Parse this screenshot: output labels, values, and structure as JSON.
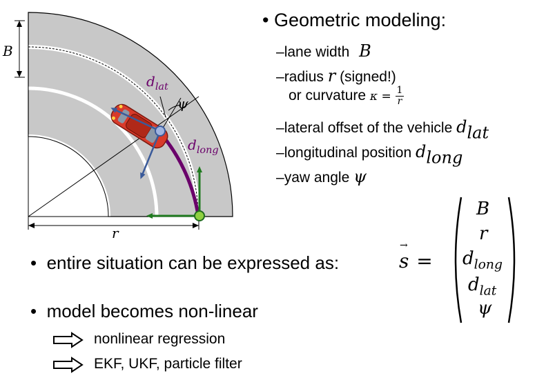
{
  "diagram": {
    "label_B": "B",
    "label_r": "r",
    "label_dlat": "d",
    "label_dlat_sub": "lat",
    "label_dlong": "d",
    "label_dlong_sub": "long",
    "label_psi": "ψ",
    "colors": {
      "road": "#c8c8c8",
      "lane_marking": "#ffffff",
      "inner_area": "#ffffff",
      "d_long_arc": "#6a006a",
      "vehicle_axis": "#3a5a9a",
      "ref_axis": "#1f7a1f",
      "vehicle_body": "#d83a2a",
      "ref_point": "#8fd040",
      "vehicle_point": "#a0b4e0"
    }
  },
  "bullets": {
    "title": "Geometric modeling:",
    "items": [
      {
        "text": "lane width",
        "math": "B"
      },
      {
        "text": "radius",
        "math": "r",
        "suffix": "(signed!)"
      },
      {
        "text": "or curvature",
        "math": "κ =",
        "frac_num": "1",
        "frac_den": "r"
      },
      {
        "text": "lateral offset of the vehicle",
        "math": "d",
        "sub": "lat"
      },
      {
        "text": "longitudinal position",
        "math": "d",
        "sub": "long"
      },
      {
        "text": "yaw angle",
        "math": "ψ"
      }
    ]
  },
  "main": {
    "situation_text": "entire situation can be expressed as:",
    "state_symbol": "s",
    "equals": "=",
    "state_vector": [
      {
        "sym": "B",
        "sub": ""
      },
      {
        "sym": "r",
        "sub": ""
      },
      {
        "sym": "d",
        "sub": "long"
      },
      {
        "sym": "d",
        "sub": "lat"
      },
      {
        "sym": "ψ",
        "sub": ""
      }
    ],
    "nonlinear_text": "model becomes non-linear",
    "consequences": [
      "nonlinear regression",
      "EKF, UKF, particle filter"
    ]
  }
}
